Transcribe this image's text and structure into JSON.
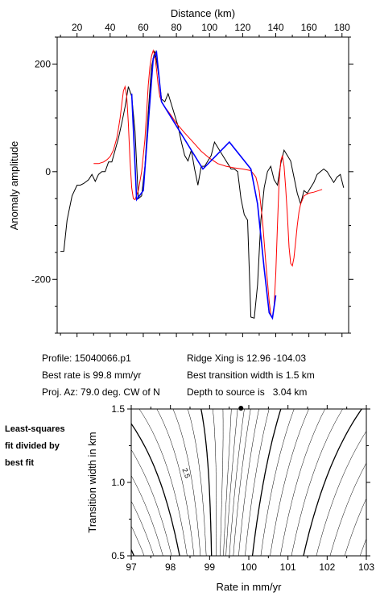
{
  "info": {
    "profile": "Profile: 15040066.p1",
    "best_rate": "Best rate is 99.8 mm/yr",
    "proj_az": "Proj. Az: 79.0 deg. CW of N",
    "ridge_xing": "Ridge Xing is 12.96 -104.03",
    "best_width": "Best transition width is 1.5 km",
    "depth": "Depth to source is   3.04 km"
  },
  "side_note": [
    "Least-squares",
    "fit divided by",
    "best fit"
  ],
  "colors": {
    "observed": "#000000",
    "model": "#ff0000",
    "fit_segment": "#0000ff",
    "contour": "#000000"
  },
  "chart_data": [
    {
      "type": "line",
      "title": "",
      "xlabel": "Distance (km)",
      "ylabel": "Anomaly amplitude",
      "xlim": [
        8,
        184
      ],
      "ylim": [
        -300,
        250
      ],
      "xticks": [
        20,
        40,
        60,
        80,
        100,
        120,
        140,
        160,
        180
      ],
      "yticks": [
        200,
        0,
        -200
      ],
      "xtick_labels": [
        "20",
        "40",
        "60",
        "80",
        "100",
        "120",
        "140",
        "160",
        "180"
      ],
      "ytick_labels": [
        "200",
        "0",
        "-200"
      ],
      "x_axis_position": "top",
      "series": [
        {
          "key": "observed",
          "x": [
            10,
            12,
            14,
            17,
            20,
            22,
            24,
            27,
            29,
            31,
            33,
            35,
            37,
            39,
            41,
            43,
            45,
            47,
            49,
            51,
            53,
            55,
            57,
            59,
            61,
            63,
            65,
            67,
            69,
            71,
            73,
            75,
            77,
            79,
            81,
            83,
            85,
            87,
            89,
            91,
            93,
            95,
            97,
            99,
            101,
            103,
            105,
            107,
            109,
            111,
            113,
            115,
            117,
            119,
            121,
            123,
            125,
            127,
            129,
            131,
            133,
            135,
            137,
            139,
            141,
            143,
            145,
            147,
            149,
            151,
            153,
            155,
            157,
            159,
            161,
            163,
            165,
            167,
            169,
            171,
            173,
            175,
            177,
            179,
            181
          ],
          "y": [
            -148,
            -148,
            -90,
            -45,
            -25,
            -25,
            -22,
            -15,
            -5,
            -18,
            -5,
            0,
            0,
            18,
            18,
            40,
            62,
            90,
            120,
            158,
            140,
            75,
            -50,
            -45,
            10,
            110,
            195,
            225,
            185,
            135,
            130,
            145,
            125,
            105,
            85,
            55,
            30,
            20,
            40,
            5,
            -25,
            10,
            10,
            20,
            30,
            55,
            45,
            35,
            25,
            15,
            5,
            5,
            0,
            -50,
            -80,
            -90,
            -270,
            -272,
            -210,
            -90,
            -30,
            0,
            10,
            -15,
            -25,
            15,
            40,
            30,
            20,
            -10,
            -40,
            -60,
            -35,
            -40,
            -30,
            -20,
            -5,
            0,
            5,
            0,
            -10,
            -20,
            -10,
            -5,
            -30
          ],
          "fit_segment": {
            "x": [
              53,
              56,
              60,
              64,
              66,
              68,
              71,
              96,
              112,
              125,
              129,
              133,
              136,
              138,
              140
            ],
            "y": [
              145,
              -52,
              -35,
              130,
              210,
              222,
              130,
              5,
              55,
              5,
              -60,
              -180,
              -262,
              -272,
              -230
            ]
          }
        },
        {
          "key": "model",
          "x": [
            30,
            33,
            36,
            38,
            40,
            42,
            44,
            45,
            46,
            47,
            48,
            49,
            50,
            51,
            52,
            53,
            54,
            55,
            57,
            59,
            61,
            62,
            63,
            64,
            65,
            66,
            67,
            68,
            69,
            70,
            71,
            73,
            76,
            80,
            85,
            90,
            95,
            100,
            105,
            110,
            115,
            120,
            125,
            128,
            130,
            132,
            134,
            136,
            137,
            138,
            139,
            140,
            141,
            142,
            143,
            144,
            145,
            146,
            147,
            148,
            149,
            150,
            151,
            152,
            153,
            154,
            155,
            157,
            160,
            163,
            166,
            168
          ],
          "y": [
            15,
            15,
            18,
            22,
            28,
            40,
            62,
            80,
            100,
            125,
            150,
            158,
            140,
            90,
            20,
            -30,
            -50,
            -52,
            -35,
            0,
            60,
            110,
            160,
            195,
            215,
            225,
            215,
            190,
            160,
            140,
            130,
            120,
            108,
            90,
            72,
            55,
            38,
            25,
            15,
            10,
            7,
            5,
            2,
            -10,
            -35,
            -90,
            -170,
            -240,
            -265,
            -272,
            -250,
            -190,
            -100,
            -20,
            20,
            30,
            10,
            -30,
            -80,
            -140,
            -170,
            -175,
            -160,
            -130,
            -100,
            -75,
            -60,
            -45,
            -40,
            -38,
            -35,
            -33
          ]
        }
      ]
    },
    {
      "type": "contour",
      "title": "",
      "xlabel": "Rate in mm/yr",
      "ylabel": "Transition width in km",
      "xlim": [
        97,
        103
      ],
      "ylim": [
        0.5,
        1.5
      ],
      "xticks": [
        97,
        98,
        99,
        100,
        101,
        102,
        103
      ],
      "yticks": [
        0.5,
        1.0,
        1.5
      ],
      "xtick_labels": [
        "97",
        "98",
        "99",
        "100",
        "101",
        "102",
        "103"
      ],
      "ytick_labels": [
        "0.5",
        "1.0",
        "1.5"
      ],
      "best_fit_point": {
        "rate": 99.8,
        "width": 1.5
      },
      "contour_label": "2.5",
      "contour_label_location": {
        "rate": 98.3,
        "width": 1.09
      }
    }
  ]
}
